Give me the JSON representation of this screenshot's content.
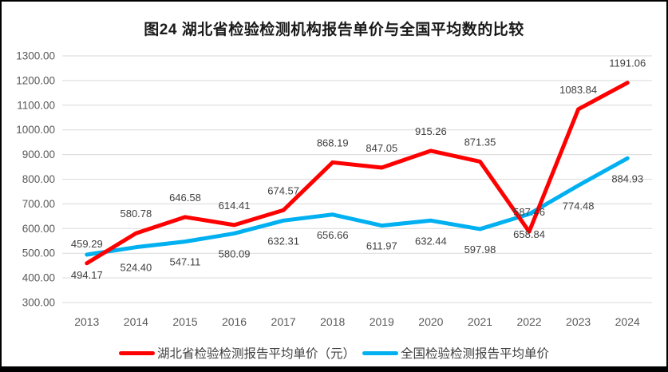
{
  "chart_data": {
    "type": "line",
    "title": "图24 湖北省检验检测机构报告单价与全国平均数的比较",
    "categories": [
      "2013",
      "2014",
      "2015",
      "2016",
      "2017",
      "2018",
      "2019",
      "2020",
      "2021",
      "2022",
      "2023",
      "2024"
    ],
    "series": [
      {
        "name": "湖北省检验检测报告平均单价（元）",
        "color": "#FF0000",
        "label_position": "above",
        "values": [
          459.29,
          580.78,
          646.58,
          614.41,
          674.57,
          868.19,
          847.05,
          915.26,
          871.35,
          587.46,
          1083.84,
          1191.06
        ]
      },
      {
        "name": "全国检验检测报告平均单价",
        "color": "#00B0F0",
        "label_position": "below",
        "values": [
          494.17,
          524.4,
          547.11,
          580.09,
          632.31,
          656.66,
          611.97,
          632.44,
          597.98,
          658.84,
          774.48,
          884.93
        ]
      }
    ],
    "ylim": [
      300,
      1300
    ],
    "ytick_step": 100,
    "ytick_labels": [
      "300.00",
      "400.00",
      "500.00",
      "600.00",
      "700.00",
      "800.00",
      "900.00",
      "1000.00",
      "1100.00",
      "1200.00",
      "1300.00"
    ],
    "grid": true,
    "legend_position": "bottom",
    "colors": {
      "gridline": "#D9D9D9",
      "axis_text": "#595959",
      "data_label_text": "#404040",
      "title_text": "#1a1a1a",
      "border": "#000000"
    }
  }
}
